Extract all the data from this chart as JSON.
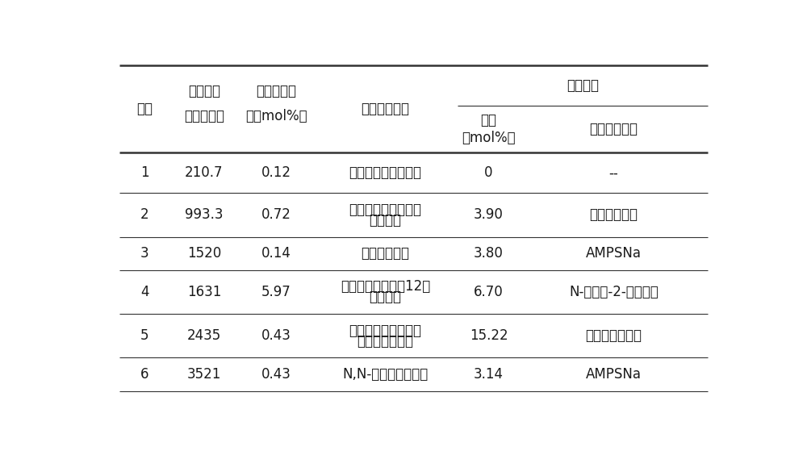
{
  "background_color": "#ffffff",
  "figsize": [
    10.0,
    5.64
  ],
  "dpi": 100,
  "rows": [
    {
      "id": "1",
      "mw": "210.7",
      "hydrophobic_content": "0.12",
      "hydrophobic_name_lines": [
        "甲基丙烯酸六氟丁酯"
      ],
      "functional_content": "0",
      "functional_name_lines": [
        "--"
      ]
    },
    {
      "id": "2",
      "mw": "993.3",
      "hydrophobic_content": "0.72",
      "hydrophobic_name_lines": [
        "丙烯酸聚氧乙烯十六",
        "烷基甲酯"
      ],
      "functional_content": "3.90",
      "functional_name_lines": [
        "苯乙烯磺酸钙"
      ]
    },
    {
      "id": "3",
      "mw": "1520",
      "hydrophobic_content": "0.14",
      "hydrophobic_name_lines": [
        "丙烯酸十八酯"
      ],
      "functional_content": "3.80",
      "functional_name_lines": [
        "AMPSNa"
      ]
    },
    {
      "id": "4",
      "mw": "1631",
      "hydrophobic_content": "5.97",
      "hydrophobic_name_lines": [
        "辛基酚聚氧乙烯（12）",
        "丙烯酸酯"
      ],
      "functional_content": "6.70",
      "functional_name_lines": [
        "N-乙烯基-2-吵咋烷酮"
      ]
    },
    {
      "id": "5",
      "mw": "2435",
      "hydrophobic_content": "0.43",
      "hydrophobic_name_lines": [
        "十二烷基烯丙基二氯",
        "化四甲基乙二铵"
      ],
      "functional_content": "15.22",
      "functional_name_lines": [
        "对乙烯基磺酸钙"
      ]
    },
    {
      "id": "6",
      "mw": "3521",
      "hydrophobic_content": "0.43",
      "hydrophobic_name_lines": [
        "N,N-二辛基丙烯酯胺"
      ],
      "functional_content": "3.14",
      "functional_name_lines": [
        "AMPSNa"
      ]
    }
  ],
  "header": {
    "col1": "编号",
    "col2_l1": "聚合物分",
    "col2_l2": "子量（万）",
    "col3_l1": "疏水单体含",
    "col3_l2": "量（mol%）",
    "col4": "疏水单体名称",
    "col5_group": "功能单体",
    "col5_l1": "含量",
    "col5_l2": "（mol%）",
    "col6": "功能单体名称"
  },
  "font_size": 12,
  "text_color": "#1a1a1a",
  "line_color": "#333333"
}
